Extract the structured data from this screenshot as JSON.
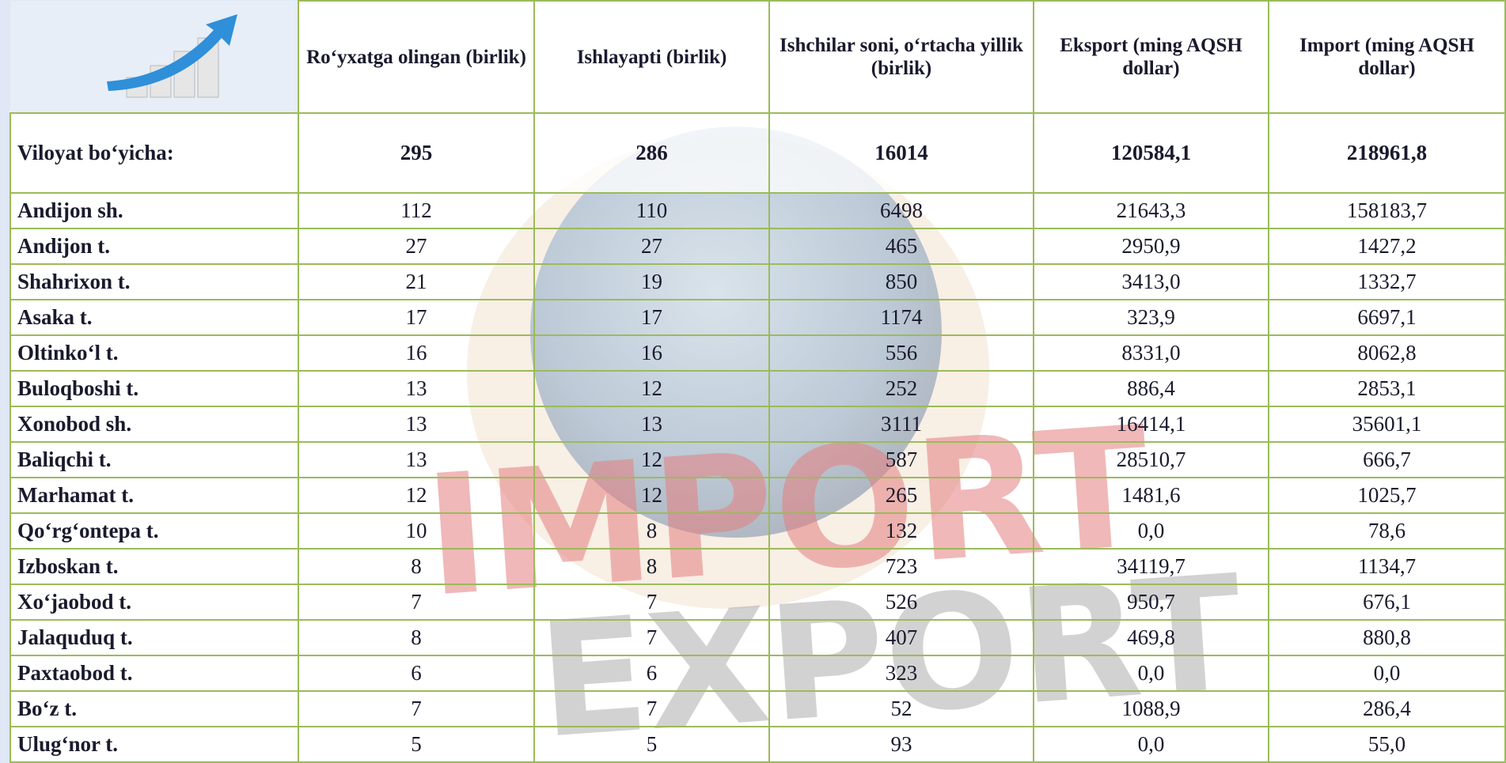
{
  "header": {
    "columns": [
      "Ro‘yxatga olingan (birlik)",
      "Ishlayapti (birlik)",
      "Ishchilar soni, o‘rtacha yillik (birlik)",
      "Eksport (ming AQSH dollar)",
      "Import (ming AQSH dollar)"
    ]
  },
  "background": {
    "words": [
      "IMPORT",
      "EXPORT"
    ]
  },
  "table": {
    "total": [
      "Viloyat bo‘yicha:",
      "295",
      "286",
      "16014",
      "120584,1",
      "218961,8"
    ],
    "rows": [
      [
        "Andijon sh.",
        "112",
        "110",
        "6498",
        "21643,3",
        "158183,7"
      ],
      [
        "Andijon t.",
        "27",
        "27",
        "465",
        "2950,9",
        "1427,2"
      ],
      [
        "Shahrixon t.",
        "21",
        "19",
        "850",
        "3413,0",
        "1332,7"
      ],
      [
        "Asaka t.",
        "17",
        "17",
        "1174",
        "323,9",
        "6697,1"
      ],
      [
        "Oltinko‘l t.",
        "16",
        "16",
        "556",
        "8331,0",
        "8062,8"
      ],
      [
        "Buloqboshi t.",
        "13",
        "12",
        "252",
        "886,4",
        "2853,1"
      ],
      [
        "Xonobod sh.",
        "13",
        "13",
        "3111",
        "16414,1",
        "35601,1"
      ],
      [
        "Baliqchi t.",
        "13",
        "12",
        "587",
        "28510,7",
        "666,7"
      ],
      [
        "Marhamat t.",
        "12",
        "12",
        "265",
        "1481,6",
        "1025,7"
      ],
      [
        "Qo‘rg‘ontepa t.",
        "10",
        "8",
        "132",
        "0,0",
        "78,6"
      ],
      [
        "Izboskan t.",
        "8",
        "8",
        "723",
        "34119,7",
        "1134,7"
      ],
      [
        "Xo‘jaobod t.",
        "7",
        "7",
        "526",
        "950,7",
        "676,1"
      ],
      [
        "Jalaquduq t.",
        "8",
        "7",
        "407",
        "469,8",
        "880,8"
      ],
      [
        "Paxtaobod t.",
        "6",
        "6",
        "323",
        "0,0",
        "0,0"
      ],
      [
        "Bo‘z t.",
        "7",
        "7",
        "52",
        "1088,9",
        "286,4"
      ],
      [
        "Ulug‘nor t.",
        "5",
        "5",
        "93",
        "0,0",
        "55,0"
      ]
    ]
  }
}
